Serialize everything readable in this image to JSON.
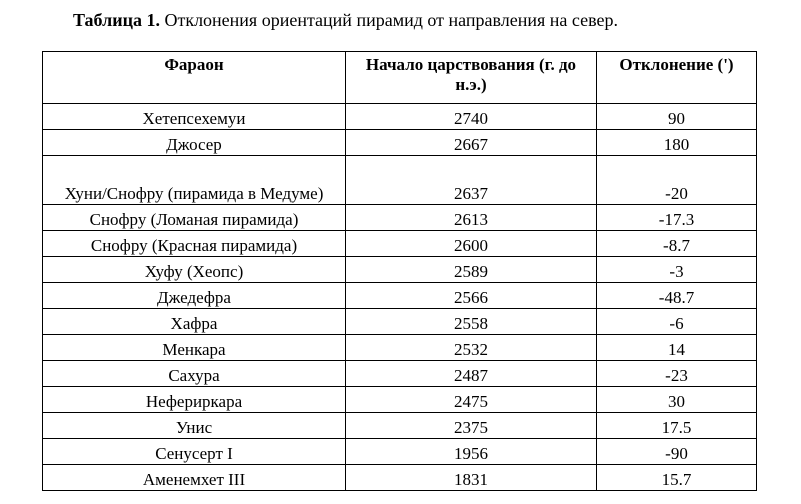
{
  "caption": {
    "label": "Таблица 1.",
    "text": "Отклонения ориентаций пирамид от направления на север."
  },
  "table": {
    "headers": [
      "Фараон",
      "Начало царствования (г. до н.э.)",
      "Отклонение (')"
    ],
    "rows": [
      [
        "Хетепсехемуи",
        "2740",
        "90"
      ],
      [
        "Джосер",
        "2667",
        "180"
      ],
      [
        "Хуни/Снофру (пирамида в Медуме)",
        "2637",
        "-20"
      ],
      [
        "Снофру (Ломаная пирамида)",
        "2613",
        "-17.3"
      ],
      [
        "Снофру (Красная пирамида)",
        "2600",
        "-8.7"
      ],
      [
        "Хуфу (Хеопс)",
        "2589",
        "-3"
      ],
      [
        "Джедефра",
        "2566",
        "-48.7"
      ],
      [
        "Хафра",
        "2558",
        "-6"
      ],
      [
        "Менкара",
        "2532",
        "14"
      ],
      [
        "Сахура",
        "2487",
        "-23"
      ],
      [
        "Нефериркара",
        "2475",
        "30"
      ],
      [
        "Унис",
        "2375",
        "17.5"
      ],
      [
        "Сенусерт I",
        "1956",
        "-90"
      ],
      [
        "Аменемхет III",
        "1831",
        "15.7"
      ]
    ]
  }
}
